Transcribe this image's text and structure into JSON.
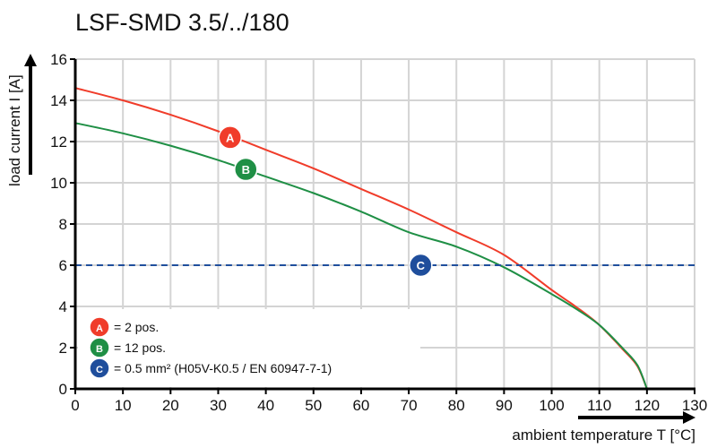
{
  "chart_data": {
    "type": "line",
    "title": "LSF-SMD 3.5/../180",
    "xlabel": "ambient temperature T [°C]",
    "ylabel": "load current I [A]",
    "xlim": [
      0,
      130
    ],
    "ylim": [
      0,
      16
    ],
    "xticks": [
      0,
      10,
      20,
      30,
      40,
      50,
      60,
      70,
      80,
      90,
      100,
      110,
      120,
      130
    ],
    "yticks": [
      0,
      2,
      4,
      6,
      8,
      10,
      12,
      14,
      16
    ],
    "grid": true,
    "legend_position": "bottom-left",
    "series": [
      {
        "name": "A",
        "legend": "= 2 pos.",
        "color": "#f03c2a",
        "x": [
          0,
          10,
          20,
          30,
          40,
          50,
          60,
          70,
          80,
          90,
          100,
          105,
          110,
          115,
          118,
          120
        ],
        "y": [
          14.6,
          14.0,
          13.3,
          12.5,
          11.6,
          10.7,
          9.7,
          8.7,
          7.6,
          6.5,
          4.8,
          4.0,
          3.1,
          1.9,
          1.1,
          0
        ]
      },
      {
        "name": "B",
        "legend": "= 12 pos.",
        "color": "#1f8f45",
        "x": [
          0,
          10,
          20,
          30,
          40,
          50,
          60,
          70,
          80,
          90,
          100,
          105,
          110,
          115,
          118,
          120
        ],
        "y": [
          12.9,
          12.4,
          11.8,
          11.1,
          10.3,
          9.5,
          8.6,
          7.6,
          6.9,
          5.9,
          4.6,
          3.9,
          3.1,
          1.95,
          1.15,
          0
        ]
      },
      {
        "name": "C",
        "legend": "= 0.5 mm² (H05V-K0.5 / EN 60947-7-1)",
        "color": "#1f4e9c",
        "style": "dashed",
        "x": [
          0,
          130
        ],
        "y": [
          6,
          6
        ]
      }
    ],
    "markers": [
      {
        "label": "A",
        "x": 32.5,
        "y": 12.2
      },
      {
        "label": "B",
        "x": 35.8,
        "y": 10.65
      },
      {
        "label": "C",
        "x": 72.5,
        "y": 6
      }
    ]
  }
}
